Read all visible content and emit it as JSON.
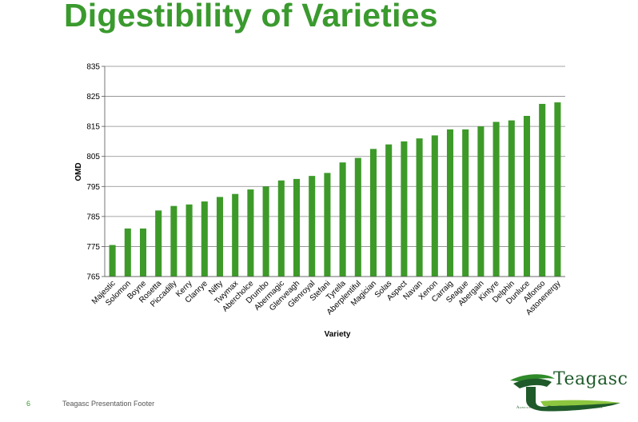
{
  "slide": {
    "title": "Digestibility of Varieties",
    "footer_page": "6",
    "footer_text": "Teagasc Presentation Footer"
  },
  "logo": {
    "name": "Teagasc",
    "tagline": "Agriculture and Food Development Authority"
  },
  "colors": {
    "title": "#3a9a2e",
    "bar": "#3d9a29",
    "grid": "#888888"
  },
  "chart_data": {
    "type": "bar",
    "title": "",
    "xlabel": "Variety",
    "ylabel": "OMD",
    "ylim": [
      765,
      835
    ],
    "yticks": [
      765,
      775,
      785,
      795,
      805,
      815,
      825,
      835
    ],
    "grid": true,
    "categories": [
      "Majestic",
      "Solomon",
      "Boyne",
      "Rosetta",
      "Piccadilly",
      "Kerry",
      "Clanrye",
      "Nifty",
      "Twymax",
      "Abercholce",
      "Drumbo",
      "Abermagic",
      "Glenveagh",
      "Glenroyal",
      "Stefani",
      "Tyrella",
      "Aberplentiful",
      "Magician",
      "Solas",
      "Aspect",
      "Navan",
      "Xenon",
      "Carraig",
      "Seague",
      "Abergain",
      "Kintyre",
      "Delphin",
      "Dunluce",
      "Alfonso",
      "Astonenergy"
    ],
    "values": [
      775.5,
      781,
      781,
      787,
      788.5,
      789,
      790,
      791.5,
      792.5,
      794,
      795,
      797,
      797.5,
      798.5,
      799.5,
      803,
      804.5,
      807.5,
      809,
      810,
      811,
      812,
      814,
      814,
      815,
      816.5,
      817,
      818.5,
      822.5,
      823
    ]
  }
}
